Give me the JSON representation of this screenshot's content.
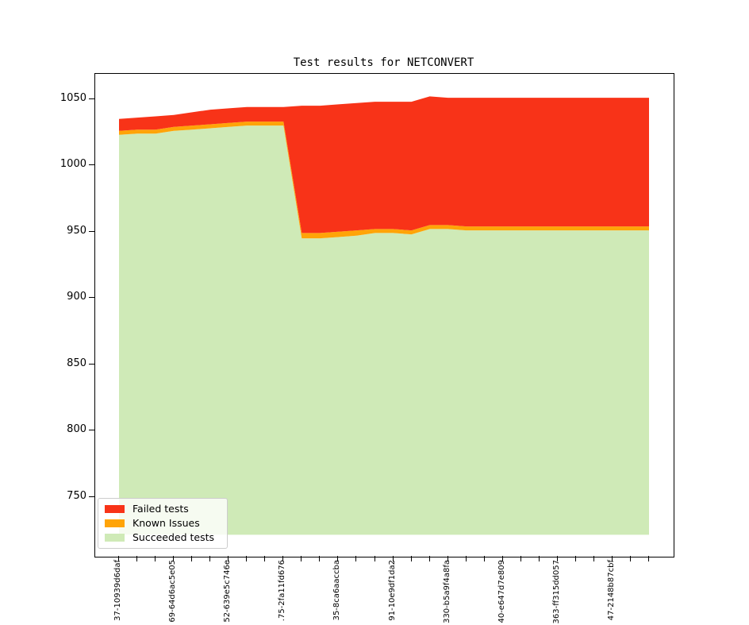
{
  "figure": {
    "background": "#ffffff"
  },
  "chart_data": {
    "type": "area",
    "stacked": true,
    "title": "Test results for NETCONVERT",
    "xlabel": "",
    "ylabel": "",
    "grid": false,
    "legend_position": "lower left",
    "y_ticks": [
      1050,
      1000,
      950,
      900,
      850,
      800,
      750
    ],
    "ylim": [
      705,
      1069
    ],
    "area_baseline": 721.5,
    "x_tick_labels": [
      "37-10939d6daf",
      "",
      "",
      "69-64d6ac5e05",
      "",
      "",
      "52-639e5c746e",
      "",
      "",
      ".75-2fa11fd676",
      "",
      "",
      "35-8ca6aaccba",
      "",
      "",
      "91-10e9df1da2",
      "",
      "",
      "330-b5a9f4a8fa",
      "",
      "",
      "40-e647d7e809",
      "",
      "",
      "363-ff315dd057",
      "",
      "",
      "47-2148b87cbf",
      "",
      ""
    ],
    "series": [
      {
        "name": "Succeeded tests",
        "color": "#cfeab7",
        "values": [
          1023,
          1024,
          1024,
          1026,
          1027,
          1028,
          1029,
          1030,
          1030,
          1030,
          945,
          945,
          946,
          947,
          949,
          949,
          948,
          952,
          952,
          951,
          951,
          951,
          951,
          951,
          951,
          951,
          951,
          951,
          951,
          951
        ]
      },
      {
        "name": "Known Issues",
        "color": "#ffa408",
        "values": [
          3,
          3,
          3,
          3,
          3,
          3,
          3,
          3,
          3,
          3,
          4,
          4,
          4,
          4,
          3,
          3,
          3,
          3,
          3,
          3,
          3,
          3,
          3,
          3,
          3,
          3,
          3,
          3,
          3,
          3
        ]
      },
      {
        "name": "Failed tests",
        "color": "#f83318",
        "values": [
          9,
          9,
          10,
          9,
          10,
          11,
          11,
          11,
          11,
          11,
          96,
          96,
          96,
          96,
          96,
          96,
          97,
          97,
          96,
          97,
          97,
          97,
          97,
          97,
          97,
          97,
          97,
          97,
          97,
          97
        ]
      }
    ]
  },
  "legend": {
    "items": [
      {
        "label": "Failed tests",
        "color": "#f83318"
      },
      {
        "label": "Known Issues",
        "color": "#ffa408"
      },
      {
        "label": "Succeeded tests",
        "color": "#cfeab7"
      }
    ]
  }
}
